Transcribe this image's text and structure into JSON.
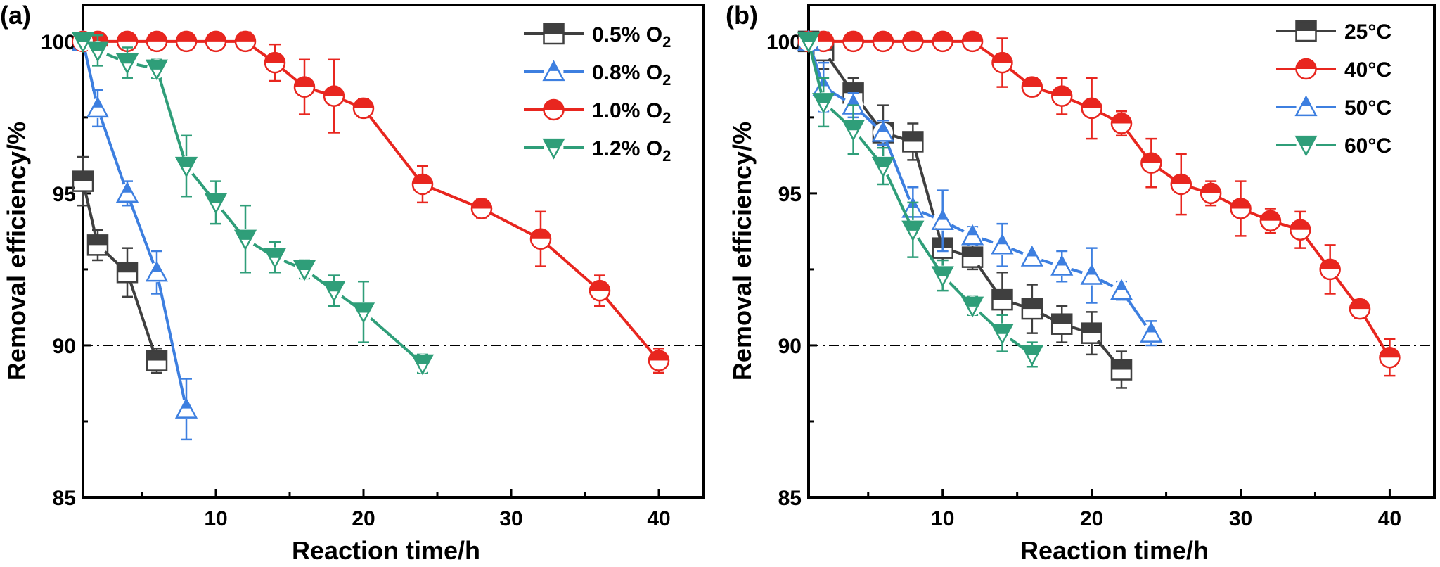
{
  "chart_data": [
    {
      "type": "line",
      "panel_label": "(a)",
      "xlabel": "Reaction time/h",
      "ylabel": "Removal efficiency/%",
      "xlim": [
        1,
        43
      ],
      "ylim": [
        85,
        101.2
      ],
      "xticks": [
        10,
        20,
        30,
        40
      ],
      "xtick_labels": [
        "10",
        "20",
        "30",
        "40"
      ],
      "yticks": [
        85,
        90,
        95,
        100
      ],
      "ytick_labels": [
        "85",
        "90",
        "95",
        "100"
      ],
      "reference_line": 90,
      "legend_position": "top-right",
      "series": [
        {
          "name": "0.5% O",
          "subscript": "2",
          "color": "#3f3f3f",
          "marker": "square",
          "x": [
            1,
            2,
            4,
            6
          ],
          "y": [
            95.4,
            93.3,
            92.4,
            89.5
          ],
          "err": [
            0.8,
            0.5,
            0.8,
            0.4
          ]
        },
        {
          "name": "0.8% O",
          "subscript": "2",
          "color": "#3d7fe0",
          "marker": "triangle-up",
          "x": [
            1,
            2,
            4,
            6,
            8
          ],
          "y": [
            100,
            97.8,
            95,
            92.4,
            87.9
          ],
          "err": [
            0.2,
            0.6,
            0.4,
            0.7,
            1.0
          ]
        },
        {
          "name": "1.0% O",
          "subscript": "2",
          "color": "#e8261f",
          "marker": "circle",
          "x": [
            1,
            2,
            4,
            6,
            8,
            10,
            12,
            14,
            16,
            18,
            20,
            24,
            28,
            32,
            36,
            40
          ],
          "y": [
            100,
            100,
            100,
            100,
            100,
            100,
            100,
            99.3,
            98.5,
            98.2,
            97.8,
            95.3,
            94.5,
            93.5,
            91.8,
            89.5
          ],
          "err": [
            0.2,
            0.2,
            0.2,
            0.2,
            0.2,
            0.2,
            0.3,
            0.6,
            0.9,
            1.2,
            0.3,
            0.6,
            0.3,
            0.9,
            0.5,
            0.4
          ]
        },
        {
          "name": "1.2% O",
          "subscript": "2",
          "color": "#2f9e79",
          "marker": "triangle-down",
          "x": [
            1,
            2,
            4,
            6,
            8,
            10,
            12,
            14,
            16,
            18,
            20,
            24
          ],
          "y": [
            100,
            99.7,
            99.3,
            99.1,
            95.9,
            94.7,
            93.5,
            92.9,
            92.5,
            91.8,
            91.1,
            89.4
          ],
          "err": [
            0.2,
            0.5,
            0.5,
            0.3,
            1.0,
            0.7,
            1.1,
            0.5,
            0.3,
            0.5,
            1.0,
            0.3
          ]
        }
      ]
    },
    {
      "type": "line",
      "panel_label": "(b)",
      "xlabel": "Reaction time/h",
      "ylabel": "Removal efficiency/%",
      "xlim": [
        1,
        43
      ],
      "ylim": [
        85,
        101.2
      ],
      "xticks": [
        10,
        20,
        30,
        40
      ],
      "xtick_labels": [
        "10",
        "20",
        "30",
        "40"
      ],
      "yticks": [
        85,
        90,
        95,
        100
      ],
      "ytick_labels": [
        "85",
        "90",
        "95",
        "100"
      ],
      "reference_line": 90,
      "legend_position": "top-right",
      "series": [
        {
          "name": "25°C",
          "subscript": "",
          "color": "#3f3f3f",
          "marker": "square",
          "x": [
            1,
            2,
            4,
            6,
            8,
            10,
            12,
            14,
            16,
            18,
            20,
            22
          ],
          "y": [
            100,
            99.7,
            98.3,
            97,
            96.7,
            93.2,
            92.9,
            91.5,
            91.2,
            90.7,
            90.4,
            89.2
          ],
          "err": [
            0.2,
            0.6,
            0.5,
            0.9,
            0.6,
            1.1,
            0.4,
            0.9,
            0.8,
            0.6,
            0.7,
            0.6
          ]
        },
        {
          "name": "40°C",
          "subscript": "",
          "color": "#e8261f",
          "marker": "circle",
          "x": [
            1,
            2,
            4,
            6,
            8,
            10,
            12,
            14,
            16,
            18,
            20,
            22,
            24,
            26,
            28,
            30,
            32,
            34,
            36,
            38,
            40
          ],
          "y": [
            100,
            100,
            100,
            100,
            100,
            100,
            100,
            99.3,
            98.5,
            98.2,
            97.8,
            97.3,
            96,
            95.3,
            95,
            94.5,
            94.1,
            93.8,
            92.5,
            91.2,
            89.6
          ],
          "err": [
            0.2,
            0.2,
            0.2,
            0.2,
            0.2,
            0.2,
            0.2,
            0.8,
            0.3,
            0.6,
            1.0,
            0.4,
            0.8,
            1.0,
            0.4,
            0.9,
            0.4,
            0.6,
            0.8,
            0.3,
            0.6
          ]
        },
        {
          "name": "50°C",
          "subscript": "",
          "color": "#3d7fe0",
          "marker": "triangle-up",
          "x": [
            1,
            2,
            4,
            6,
            8,
            10,
            12,
            14,
            16,
            18,
            20,
            22,
            24
          ],
          "y": [
            100,
            98.5,
            97.9,
            97,
            94.5,
            94.1,
            93.6,
            93.3,
            92.9,
            92.6,
            92.3,
            91.8,
            90.4
          ],
          "err": [
            0.2,
            0.8,
            0.4,
            0.4,
            0.7,
            1.0,
            0.3,
            0.7,
            0.2,
            0.5,
            0.9,
            0.3,
            0.4
          ]
        },
        {
          "name": "60°C",
          "subscript": "",
          "color": "#2f9e79",
          "marker": "triangle-down",
          "x": [
            1,
            2,
            4,
            6,
            8,
            10,
            12,
            14,
            16
          ],
          "y": [
            100,
            98,
            97.1,
            95.9,
            93.8,
            92.3,
            91.3,
            90.4,
            89.7
          ],
          "err": [
            0.2,
            0.8,
            0.8,
            0.6,
            0.9,
            0.5,
            0.3,
            0.6,
            0.4
          ]
        }
      ]
    }
  ]
}
